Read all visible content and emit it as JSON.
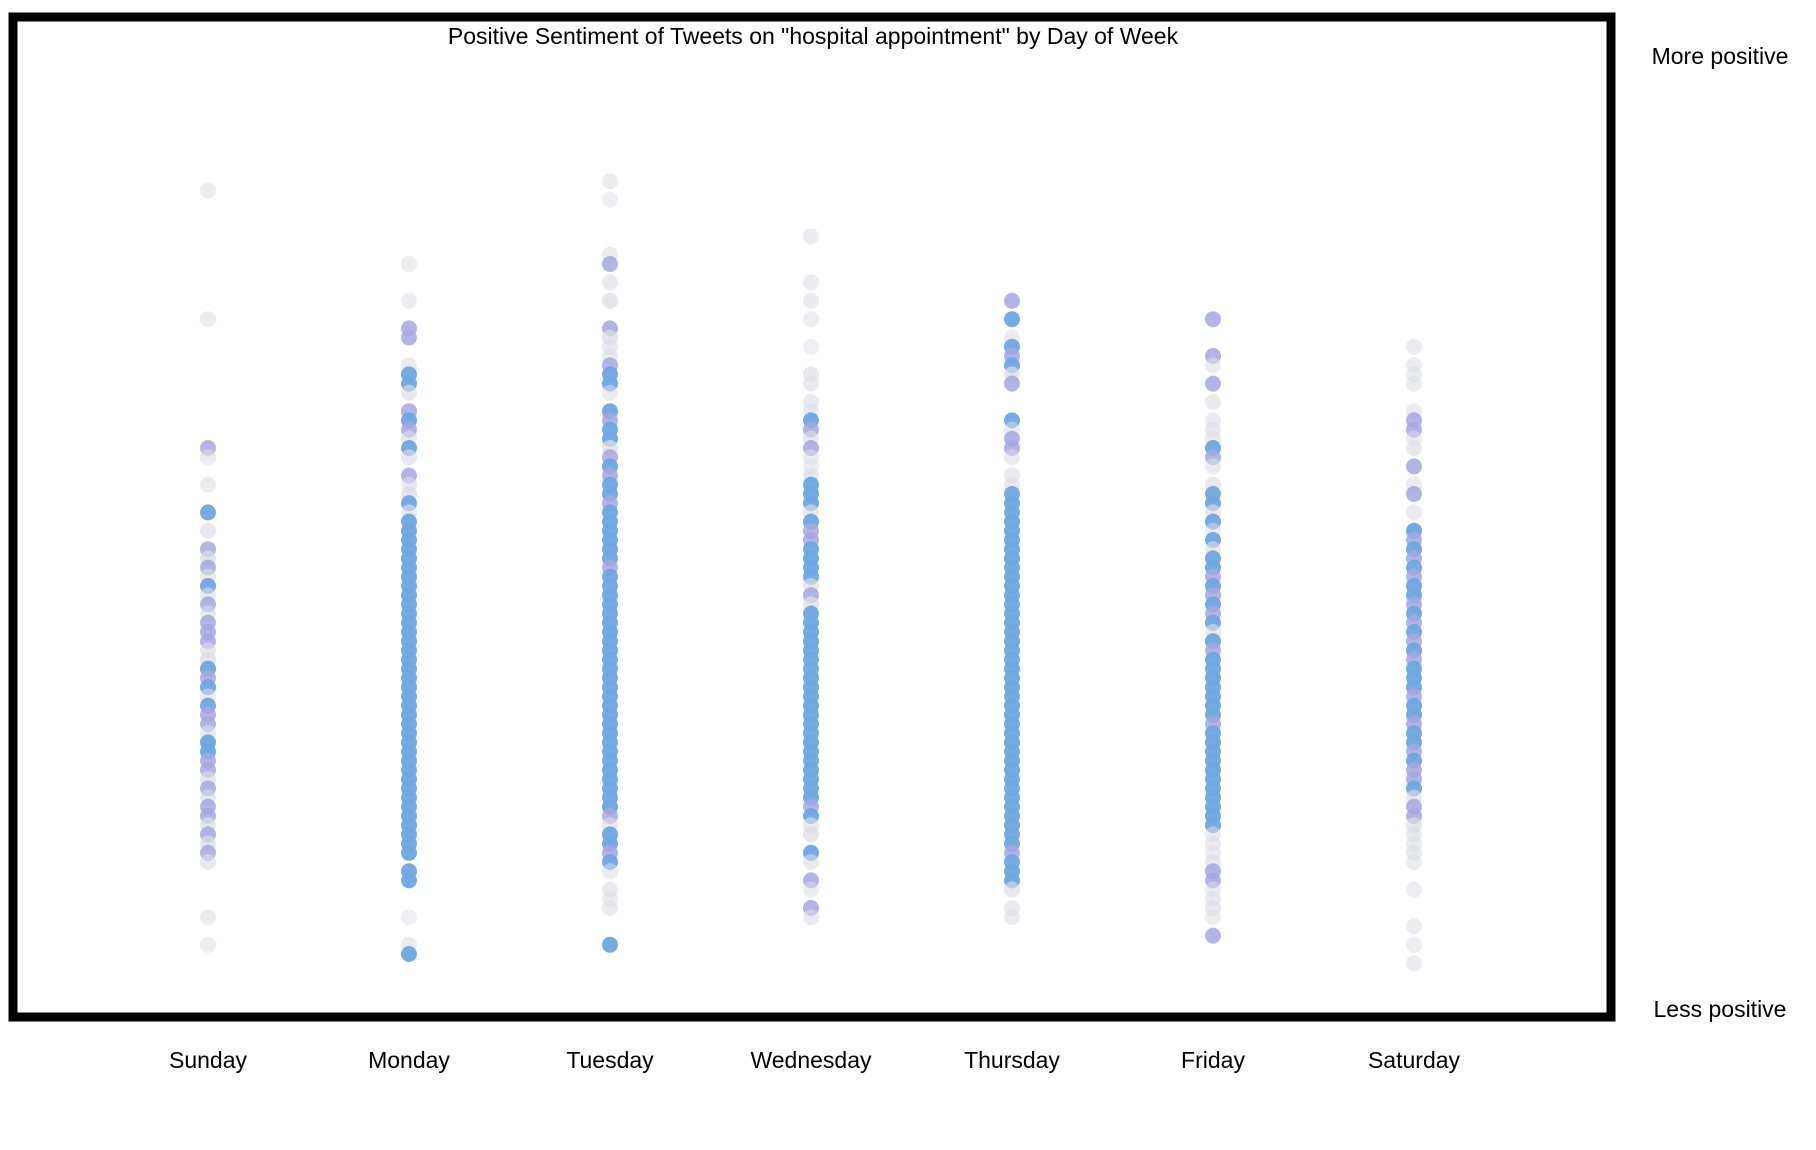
{
  "chart_data": {
    "type": "scatter",
    "title": "Positive Sentiment of Tweets on \"hospital appointment\" by Day of Week",
    "xlabel": "",
    "ylabel": "",
    "categories": [
      "Sunday",
      "Monday",
      "Tuesday",
      "Wednesday",
      "Thursday",
      "Friday",
      "Saturday"
    ],
    "y_axis_labels": {
      "top": "More positive",
      "bottom": "Less positive"
    },
    "ylim": [
      0,
      1
    ],
    "grid": false,
    "legend": null,
    "colors": {
      "frame": "#000000",
      "low_confidence": "#dcdce4",
      "mid_confidence": "#a6a7e0",
      "high_confidence": "#6fa6e0"
    },
    "series": [
      {
        "name": "Sunday",
        "values": [
          0.88,
          0.74,
          0.6,
          0.59,
          0.56,
          0.53,
          0.51,
          0.49,
          0.48,
          0.47,
          0.46,
          0.45,
          0.44,
          0.43,
          0.42,
          0.41,
          0.4,
          0.39,
          0.38,
          0.37,
          0.36,
          0.35,
          0.34,
          0.33,
          0.32,
          0.31,
          0.3,
          0.29,
          0.28,
          0.27,
          0.26,
          0.25,
          0.24,
          0.23,
          0.22,
          0.21,
          0.2,
          0.19,
          0.18,
          0.17,
          0.16,
          0.15,
          0.09,
          0.06
        ],
        "confidence": [
          0.15,
          0.2,
          0.55,
          0.25,
          0.2,
          0.9,
          0.3,
          0.6,
          0.4,
          0.55,
          0.3,
          0.85,
          0.25,
          0.6,
          0.3,
          0.55,
          0.5,
          0.6,
          0.3,
          0.4,
          0.85,
          0.55,
          0.9,
          0.2,
          0.85,
          0.55,
          0.6,
          0.3,
          0.9,
          0.85,
          0.55,
          0.6,
          0.35,
          0.55,
          0.3,
          0.6,
          0.55,
          0.4,
          0.6,
          0.35,
          0.55,
          0.3,
          0.2,
          0.15
        ]
      },
      {
        "name": "Monday",
        "values": [
          0.8,
          0.76,
          0.73,
          0.72,
          0.69,
          0.68,
          0.67,
          0.66,
          0.64,
          0.63,
          0.62,
          0.61,
          0.6,
          0.59,
          0.57,
          0.56,
          0.55,
          0.54,
          0.53,
          0.52,
          0.51,
          0.5,
          0.49,
          0.48,
          0.47,
          0.46,
          0.45,
          0.44,
          0.43,
          0.42,
          0.41,
          0.4,
          0.39,
          0.38,
          0.37,
          0.36,
          0.35,
          0.34,
          0.33,
          0.32,
          0.31,
          0.3,
          0.29,
          0.28,
          0.27,
          0.26,
          0.25,
          0.24,
          0.23,
          0.22,
          0.21,
          0.2,
          0.19,
          0.18,
          0.17,
          0.16,
          0.14,
          0.13,
          0.09,
          0.06,
          0.05
        ],
        "confidence": [
          0.15,
          0.2,
          0.55,
          0.55,
          0.2,
          0.9,
          0.85,
          0.3,
          0.55,
          0.9,
          0.55,
          0.3,
          0.85,
          0.3,
          0.55,
          0.3,
          0.4,
          0.85,
          0.3,
          0.9,
          0.9,
          0.85,
          0.9,
          0.9,
          0.9,
          0.9,
          0.85,
          0.9,
          0.9,
          0.9,
          0.9,
          0.9,
          0.85,
          0.9,
          0.9,
          0.9,
          0.9,
          0.85,
          0.9,
          0.9,
          0.9,
          0.9,
          0.9,
          0.85,
          0.9,
          0.9,
          0.9,
          0.85,
          0.9,
          0.9,
          0.9,
          0.85,
          0.9,
          0.9,
          0.85,
          0.9,
          0.9,
          0.9,
          0.1,
          0.2,
          0.85
        ]
      },
      {
        "name": "Tuesday",
        "values": [
          0.89,
          0.87,
          0.81,
          0.8,
          0.78,
          0.76,
          0.73,
          0.72,
          0.71,
          0.7,
          0.69,
          0.68,
          0.67,
          0.66,
          0.64,
          0.63,
          0.62,
          0.61,
          0.6,
          0.59,
          0.58,
          0.57,
          0.56,
          0.55,
          0.54,
          0.53,
          0.52,
          0.51,
          0.5,
          0.49,
          0.48,
          0.47,
          0.46,
          0.45,
          0.44,
          0.43,
          0.42,
          0.41,
          0.4,
          0.39,
          0.38,
          0.37,
          0.36,
          0.35,
          0.34,
          0.33,
          0.32,
          0.31,
          0.3,
          0.29,
          0.28,
          0.27,
          0.26,
          0.25,
          0.24,
          0.23,
          0.22,
          0.21,
          0.2,
          0.19,
          0.18,
          0.17,
          0.16,
          0.15,
          0.14,
          0.12,
          0.11,
          0.1,
          0.06
        ],
        "confidence": [
          0.15,
          0.1,
          0.2,
          0.55,
          0.25,
          0.4,
          0.55,
          0.4,
          0.3,
          0.2,
          0.55,
          0.85,
          0.9,
          0.2,
          0.85,
          0.55,
          0.85,
          0.9,
          0.4,
          0.55,
          0.85,
          0.55,
          0.9,
          0.85,
          0.6,
          0.9,
          0.85,
          0.9,
          0.9,
          0.85,
          0.9,
          0.55,
          0.9,
          0.9,
          0.85,
          0.9,
          0.9,
          0.9,
          0.85,
          0.9,
          0.9,
          0.9,
          0.85,
          0.9,
          0.9,
          0.9,
          0.85,
          0.9,
          0.9,
          0.9,
          0.85,
          0.9,
          0.9,
          0.85,
          0.9,
          0.9,
          0.9,
          0.85,
          0.55,
          0.3,
          0.9,
          0.85,
          0.55,
          0.9,
          0.2,
          0.3,
          0.2,
          0.25,
          0.85
        ]
      },
      {
        "name": "Wednesday",
        "values": [
          0.83,
          0.78,
          0.76,
          0.74,
          0.71,
          0.68,
          0.67,
          0.65,
          0.64,
          0.63,
          0.62,
          0.61,
          0.6,
          0.59,
          0.58,
          0.57,
          0.56,
          0.55,
          0.54,
          0.53,
          0.52,
          0.51,
          0.5,
          0.49,
          0.48,
          0.47,
          0.46,
          0.45,
          0.44,
          0.43,
          0.42,
          0.41,
          0.4,
          0.39,
          0.38,
          0.37,
          0.36,
          0.35,
          0.34,
          0.33,
          0.32,
          0.31,
          0.3,
          0.29,
          0.28,
          0.27,
          0.26,
          0.25,
          0.24,
          0.23,
          0.22,
          0.21,
          0.2,
          0.19,
          0.18,
          0.16,
          0.15,
          0.13,
          0.12,
          0.1,
          0.09
        ],
        "confidence": [
          0.15,
          0.2,
          0.25,
          0.15,
          0.1,
          0.3,
          0.25,
          0.3,
          0.25,
          0.85,
          0.55,
          0.3,
          0.6,
          0.25,
          0.2,
          0.3,
          0.85,
          0.85,
          0.9,
          0.3,
          0.85,
          0.6,
          0.55,
          0.85,
          0.9,
          0.85,
          0.9,
          0.3,
          0.55,
          0.4,
          0.85,
          0.9,
          0.85,
          0.9,
          0.9,
          0.85,
          0.9,
          0.85,
          0.9,
          0.9,
          0.85,
          0.9,
          0.85,
          0.9,
          0.9,
          0.85,
          0.9,
          0.85,
          0.9,
          0.85,
          0.9,
          0.55,
          0.85,
          0.3,
          0.4,
          0.85,
          0.25,
          0.6,
          0.2,
          0.55,
          0.25
        ]
      },
      {
        "name": "Thursday",
        "values": [
          0.76,
          0.74,
          0.72,
          0.71,
          0.7,
          0.69,
          0.68,
          0.67,
          0.63,
          0.62,
          0.61,
          0.6,
          0.59,
          0.57,
          0.56,
          0.55,
          0.54,
          0.53,
          0.52,
          0.51,
          0.5,
          0.49,
          0.48,
          0.47,
          0.46,
          0.45,
          0.44,
          0.43,
          0.42,
          0.41,
          0.4,
          0.39,
          0.38,
          0.37,
          0.36,
          0.35,
          0.34,
          0.33,
          0.32,
          0.31,
          0.3,
          0.29,
          0.28,
          0.27,
          0.26,
          0.25,
          0.24,
          0.23,
          0.22,
          0.21,
          0.2,
          0.19,
          0.18,
          0.17,
          0.16,
          0.15,
          0.14,
          0.13,
          0.12,
          0.1,
          0.09
        ],
        "confidence": [
          0.55,
          0.9,
          0.2,
          0.9,
          0.55,
          0.85,
          0.4,
          0.55,
          0.85,
          0.2,
          0.6,
          0.55,
          0.2,
          0.3,
          0.25,
          0.85,
          0.9,
          0.85,
          0.9,
          0.9,
          0.85,
          0.9,
          0.9,
          0.9,
          0.85,
          0.9,
          0.9,
          0.9,
          0.85,
          0.9,
          0.9,
          0.9,
          0.85,
          0.9,
          0.9,
          0.9,
          0.85,
          0.9,
          0.9,
          0.9,
          0.85,
          0.9,
          0.9,
          0.9,
          0.85,
          0.9,
          0.9,
          0.9,
          0.85,
          0.9,
          0.9,
          0.9,
          0.85,
          0.9,
          0.55,
          0.9,
          0.85,
          0.9,
          0.3,
          0.25,
          0.2
        ]
      },
      {
        "name": "Friday",
        "values": [
          0.74,
          0.7,
          0.69,
          0.67,
          0.65,
          0.63,
          0.62,
          0.61,
          0.6,
          0.59,
          0.58,
          0.56,
          0.55,
          0.54,
          0.53,
          0.52,
          0.51,
          0.5,
          0.49,
          0.48,
          0.47,
          0.46,
          0.45,
          0.44,
          0.43,
          0.42,
          0.41,
          0.4,
          0.39,
          0.38,
          0.37,
          0.36,
          0.35,
          0.34,
          0.33,
          0.32,
          0.31,
          0.3,
          0.29,
          0.28,
          0.27,
          0.26,
          0.25,
          0.24,
          0.23,
          0.22,
          0.21,
          0.2,
          0.19,
          0.18,
          0.17,
          0.16,
          0.15,
          0.14,
          0.13,
          0.12,
          0.11,
          0.1,
          0.09,
          0.07
        ],
        "confidence": [
          0.55,
          0.55,
          0.2,
          0.55,
          0.25,
          0.2,
          0.3,
          0.25,
          0.9,
          0.55,
          0.25,
          0.3,
          0.85,
          0.9,
          0.3,
          0.85,
          0.2,
          0.85,
          0.3,
          0.85,
          0.9,
          0.55,
          0.85,
          0.55,
          0.9,
          0.55,
          0.85,
          0.3,
          0.9,
          0.55,
          0.9,
          0.85,
          0.9,
          0.85,
          0.9,
          0.9,
          0.85,
          0.55,
          0.9,
          0.85,
          0.9,
          0.9,
          0.85,
          0.9,
          0.85,
          0.9,
          0.9,
          0.85,
          0.9,
          0.2,
          0.25,
          0.2,
          0.3,
          0.55,
          0.55,
          0.2,
          0.25,
          0.3,
          0.15,
          0.55
        ]
      },
      {
        "name": "Saturday",
        "values": [
          0.71,
          0.69,
          0.68,
          0.67,
          0.64,
          0.63,
          0.62,
          0.61,
          0.6,
          0.58,
          0.56,
          0.55,
          0.53,
          0.51,
          0.5,
          0.49,
          0.48,
          0.47,
          0.46,
          0.45,
          0.44,
          0.43,
          0.42,
          0.41,
          0.4,
          0.39,
          0.38,
          0.37,
          0.36,
          0.35,
          0.34,
          0.33,
          0.32,
          0.31,
          0.3,
          0.29,
          0.28,
          0.27,
          0.26,
          0.25,
          0.24,
          0.23,
          0.22,
          0.21,
          0.2,
          0.19,
          0.18,
          0.17,
          0.16,
          0.15,
          0.12,
          0.08,
          0.06,
          0.04
        ],
        "confidence": [
          0.2,
          0.2,
          0.25,
          0.25,
          0.2,
          0.55,
          0.55,
          0.2,
          0.3,
          0.55,
          0.25,
          0.6,
          0.2,
          0.85,
          0.55,
          0.9,
          0.55,
          0.85,
          0.6,
          0.9,
          0.85,
          0.55,
          0.9,
          0.6,
          0.85,
          0.55,
          0.9,
          0.6,
          0.85,
          0.9,
          0.85,
          0.6,
          0.9,
          0.85,
          0.6,
          0.85,
          0.9,
          0.55,
          0.85,
          0.6,
          0.55,
          0.85,
          0.3,
          0.6,
          0.55,
          0.35,
          0.3,
          0.25,
          0.3,
          0.25,
          0.15,
          0.2,
          0.15,
          0.2
        ]
      }
    ]
  }
}
